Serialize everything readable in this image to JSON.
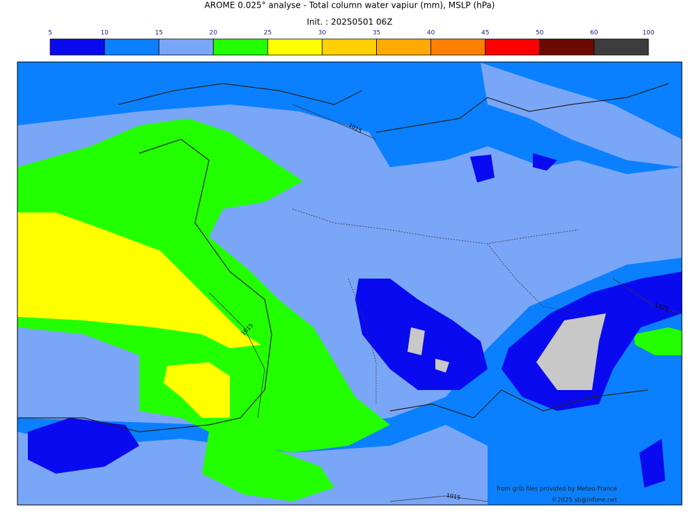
{
  "header": {
    "title": "AROME 0.025° analyse - Total column water vapiur (mm), MSLP (hPa)",
    "init": "Init. : 20250501 06Z"
  },
  "colorbar": {
    "ticks": [
      5,
      10,
      15,
      20,
      25,
      30,
      35,
      40,
      45,
      50,
      60,
      100
    ],
    "colors": [
      "#0a0af0",
      "#0a80ff",
      "#7aa6f8",
      "#22ff00",
      "#ffff00",
      "#ffd000",
      "#ffaa00",
      "#ff8000",
      "#ff0000",
      "#6b0a00",
      "#3c3c3c"
    ]
  },
  "isobars": [
    {
      "label": "1015"
    },
    {
      "label": "1015"
    },
    {
      "label": "1020"
    },
    {
      "label": "1015"
    }
  ],
  "credits": {
    "source": "from grib files provided by Meteo-France",
    "copyright": "©2025 sb@infone.net"
  }
}
